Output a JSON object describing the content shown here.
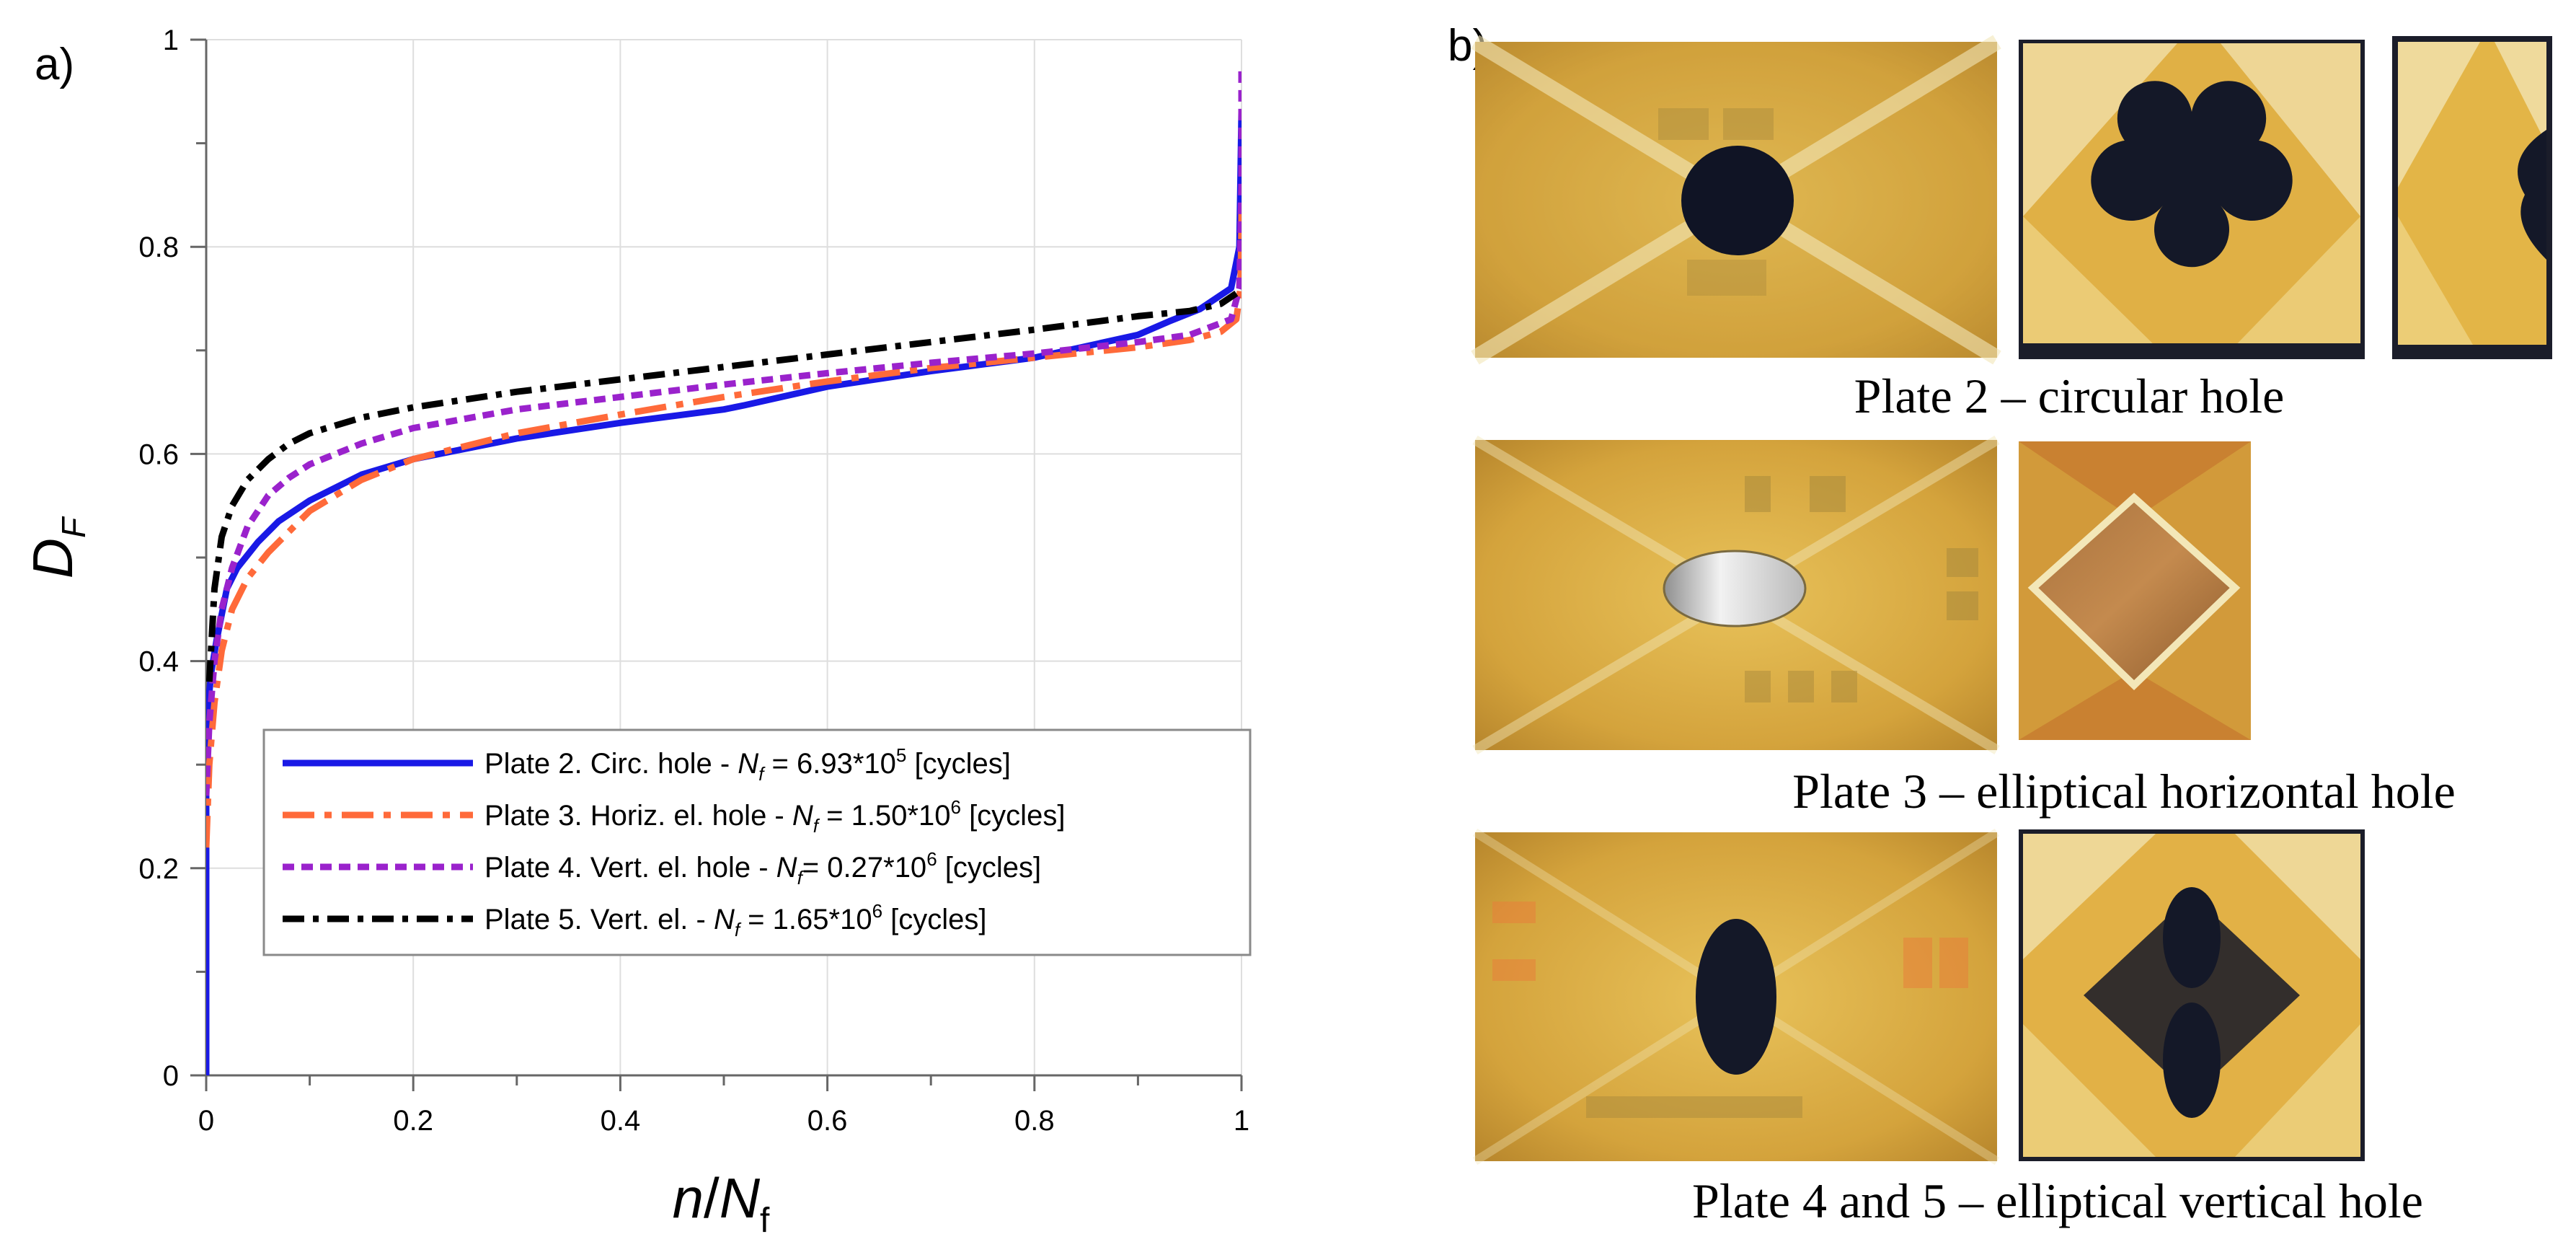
{
  "panel_a_label": "a)",
  "panel_b_label": "b)",
  "chart_data": {
    "type": "line",
    "title": "",
    "xlabel": "n/Nf",
    "xlabel_parts": {
      "n": "n",
      "slash": "/",
      "N": "N",
      "sub": "f"
    },
    "ylabel": "DF",
    "ylabel_parts": {
      "D": "D",
      "sub": "F"
    },
    "xlim": [
      0,
      1
    ],
    "ylim": [
      0,
      1
    ],
    "x_tick_labels": [
      "0",
      "0.2",
      "0.4",
      "0.6",
      "0.8",
      "1"
    ],
    "x_ticks": [
      0,
      0.2,
      0.4,
      0.6,
      0.8,
      1
    ],
    "y_tick_labels": [
      "0",
      "0.2",
      "0.4",
      "0.6",
      "0.8",
      "1"
    ],
    "y_ticks": [
      0,
      0.2,
      0.4,
      0.6,
      0.8,
      1
    ],
    "grid": true,
    "legend_position": "bottom-right",
    "series": [
      {
        "name": "Plate 2. Circ. hole",
        "legend_parts": {
          "pre": "Plate 2. Circ. hole - ",
          "N": "N",
          "sub": "f",
          "eq": " = 6.93*10",
          "sup": "5",
          "post": " [cycles]"
        },
        "color": "#1919e6",
        "dash": "none",
        "x": [
          0,
          0,
          0.002,
          0.005,
          0.01,
          0.02,
          0.03,
          0.05,
          0.07,
          0.1,
          0.15,
          0.2,
          0.3,
          0.4,
          0.5,
          0.52,
          0.6,
          0.7,
          0.8,
          0.9,
          0.93,
          0.96,
          0.99,
          0.998,
          1.0
        ],
        "y": [
          0,
          0.3,
          0.36,
          0.39,
          0.42,
          0.47,
          0.49,
          0.515,
          0.535,
          0.555,
          0.58,
          0.595,
          0.615,
          0.63,
          0.643,
          0.647,
          0.665,
          0.68,
          0.693,
          0.715,
          0.728,
          0.74,
          0.76,
          0.8,
          0.93
        ]
      },
      {
        "name": "Plate 3. Horiz. el. hole",
        "legend_parts": {
          "pre": "Plate 3. Horiz. el. hole - ",
          "N": "N",
          "sub": "f",
          "eq": " = 1.50*10",
          "sup": "6",
          "post": " [cycles]"
        },
        "color": "#ff6a3a",
        "dash": "44 14 10 14",
        "x": [
          0,
          0.003,
          0.008,
          0.015,
          0.025,
          0.04,
          0.06,
          0.08,
          0.1,
          0.15,
          0.2,
          0.3,
          0.4,
          0.5,
          0.6,
          0.7,
          0.8,
          0.9,
          0.95,
          0.98,
          0.995,
          0.999,
          1.0,
          1.0
        ],
        "y": [
          0.22,
          0.3,
          0.36,
          0.41,
          0.45,
          0.48,
          0.505,
          0.525,
          0.545,
          0.575,
          0.595,
          0.62,
          0.638,
          0.655,
          0.67,
          0.683,
          0.693,
          0.703,
          0.71,
          0.718,
          0.73,
          0.76,
          0.82,
          0.84
        ]
      },
      {
        "name": "Plate 4. Vert. el. hole",
        "legend_parts": {
          "pre": "Plate 4. Vert. el. hole - ",
          "N": "N",
          "sub": "f",
          "eq": "= 0.27*10",
          "sup": "6",
          "post": " [cycles]"
        },
        "color": "#9a22cc",
        "dash": "16 10",
        "x": [
          0,
          0.003,
          0.008,
          0.015,
          0.025,
          0.04,
          0.06,
          0.08,
          0.1,
          0.15,
          0.2,
          0.3,
          0.4,
          0.5,
          0.6,
          0.7,
          0.8,
          0.9,
          0.95,
          0.99,
          0.998,
          1.0,
          1.0
        ],
        "y": [
          0.27,
          0.34,
          0.4,
          0.45,
          0.49,
          0.53,
          0.56,
          0.577,
          0.59,
          0.61,
          0.625,
          0.643,
          0.655,
          0.667,
          0.678,
          0.688,
          0.697,
          0.708,
          0.715,
          0.73,
          0.76,
          0.86,
          0.97
        ]
      },
      {
        "name": "Plate 5. Vert. el.",
        "legend_parts": {
          "pre": "Plate 5. Vert. el. - ",
          "N": "N",
          "sub": "f",
          "eq": " = 1.65*10",
          "sup": "6",
          "post": " [cycles]"
        },
        "color": "#000000",
        "dash": "30 12 8 12",
        "x": [
          0.003,
          0.008,
          0.015,
          0.025,
          0.04,
          0.06,
          0.08,
          0.1,
          0.15,
          0.2,
          0.3,
          0.4,
          0.5,
          0.6,
          0.7,
          0.8,
          0.9,
          0.95,
          0.98,
          0.995
        ],
        "y": [
          0.38,
          0.47,
          0.52,
          0.55,
          0.575,
          0.595,
          0.61,
          0.62,
          0.635,
          0.645,
          0.66,
          0.672,
          0.684,
          0.696,
          0.708,
          0.72,
          0.733,
          0.738,
          0.745,
          0.755
        ]
      }
    ]
  },
  "panel_b": {
    "captions": [
      "Plate 2 – circular hole",
      "Plate 3 – elliptical horizontal hole",
      "Plate 4 and 5 – elliptical vertical hole"
    ],
    "photo_names": [
      "plate-2-before-photo",
      "plate-2-after-photo",
      "plate-2-side-photo",
      "plate-3-before-photo",
      "plate-3-after-photo",
      "plate-4-5-before-photo",
      "plate-4-5-after-photo"
    ],
    "colors": {
      "plate_amber": "#d9a942",
      "plate_dark_amber": "#b98426",
      "fiber_light": "#f3e7b8",
      "hole_dark": "#141828",
      "frame_dark": "#1b1d2a"
    }
  }
}
